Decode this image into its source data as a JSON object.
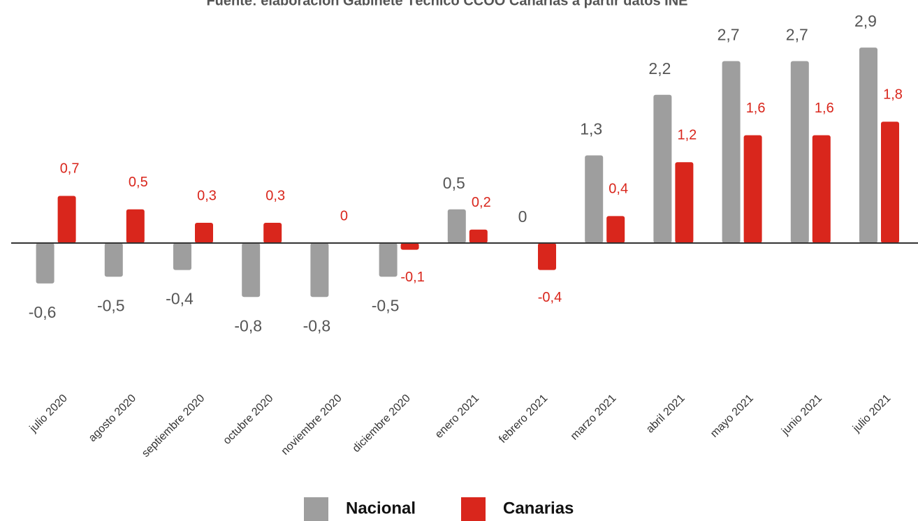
{
  "chart_data": {
    "type": "bar",
    "subtitle": "Fuente: elaboración Gabinete Técnico CCOO Canarias a partir datos INE",
    "categories": [
      "julio 2020",
      "agosto 2020",
      "septiembre 2020",
      "octubre 2020",
      "noviembre 2020",
      "diciembre 2020",
      "enero 2021",
      "febrero 2021",
      "marzo 2021",
      "abril 2021",
      "mayo 2021",
      "junio 2021",
      "julio 2021"
    ],
    "series": [
      {
        "name": "Nacional",
        "color": "#9e9e9e",
        "values": [
          -0.6,
          -0.5,
          -0.4,
          -0.8,
          -0.8,
          -0.5,
          0.5,
          0,
          1.3,
          2.2,
          2.7,
          2.7,
          2.9
        ],
        "value_labels": [
          "-0,6",
          "-0,5",
          "-0,4",
          "-0,8",
          "-0,8",
          "-0,5",
          "0,5",
          "0",
          "1,3",
          "2,2",
          "2,7",
          "2,7",
          "2,9"
        ]
      },
      {
        "name": "Canarias",
        "color": "#d9261c",
        "values": [
          0.7,
          0.5,
          0.3,
          0.3,
          0,
          -0.1,
          0.2,
          -0.4,
          0.4,
          1.2,
          1.6,
          1.6,
          1.8
        ],
        "value_labels": [
          "0,7",
          "0,5",
          "0,3",
          "0,3",
          "0",
          "-0,1",
          "0,2",
          "-0,4",
          "0,4",
          "1,2",
          "1,6",
          "1,6",
          "1,8"
        ]
      }
    ],
    "ylim": [
      -1,
      3
    ]
  }
}
